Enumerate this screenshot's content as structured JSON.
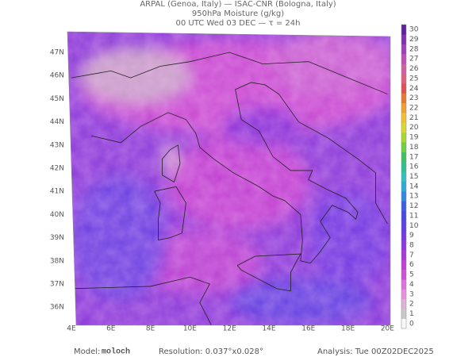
{
  "header": {
    "line1": "ARPAL (Genoa, Italy)  —  ISAC-CNR (Bologna, Italy)",
    "line2": "950hPa Moisture (g/kg)",
    "line3": "00 UTC Wed 03 DEC  —  τ = 24h"
  },
  "map": {
    "lat_labels": [
      "47N",
      "46N",
      "45N",
      "44N",
      "43N",
      "42N",
      "41N",
      "40N",
      "39N",
      "38N",
      "37N",
      "36N"
    ],
    "lon_labels": [
      "4E",
      "6E",
      "8E",
      "10E",
      "12E",
      "14E",
      "16E",
      "18E",
      "20E"
    ]
  },
  "colorbar": {
    "labels": [
      "0",
      "1",
      "2",
      "3",
      "4",
      "5",
      "6",
      "7",
      "8",
      "9",
      "10",
      "11",
      "12",
      "13",
      "14",
      "15",
      "16",
      "17",
      "18",
      "19",
      "20",
      "21",
      "22",
      "23",
      "24",
      "25",
      "26",
      "27",
      "28",
      "29",
      "30"
    ],
    "colors": [
      "#f8f8f8",
      "#c8c8c8",
      "#e0b0d8",
      "#e890e0",
      "#e070e0",
      "#d050d8",
      "#c040d8",
      "#a838d8",
      "#9038e0",
      "#7838e0",
      "#6040e0",
      "#4848e0",
      "#3860e0",
      "#3088e0",
      "#30a8d8",
      "#30c0c0",
      "#30c090",
      "#40c060",
      "#70d040",
      "#a8d830",
      "#d8d830",
      "#f0c030",
      "#f0a030",
      "#e87830",
      "#e05050",
      "#e06080",
      "#d060a0",
      "#c050b8",
      "#a040b8",
      "#8030b0",
      "#6020a0"
    ]
  },
  "footer": {
    "model_label": "Model:",
    "model": "moloch",
    "resolution": "Resolution: 0.037°x0.028°",
    "analysis": "Analysis: Tue 00Z02DEC2025"
  }
}
